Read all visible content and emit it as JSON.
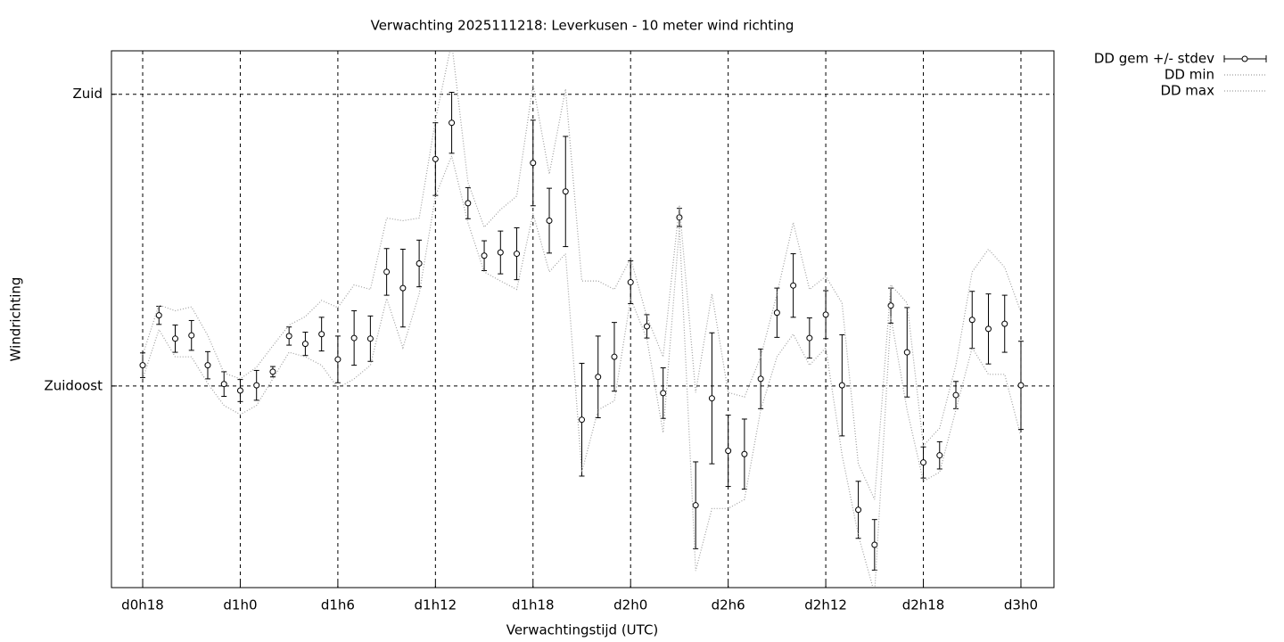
{
  "chart_data": {
    "type": "errorbar",
    "title": "Verwachting 2025111218: Leverkusen - 10 meter wind richting",
    "xlabel": "Verwachtingstijd (UTC)",
    "ylabel": "Windrichting",
    "x": [
      18,
      19,
      20,
      21,
      22,
      23,
      24,
      25,
      26,
      27,
      28,
      29,
      30,
      31,
      32,
      33,
      34,
      35,
      36,
      37,
      38,
      39,
      40,
      41,
      42,
      43,
      44,
      45,
      46,
      47,
      48,
      49,
      50,
      51,
      52,
      53,
      54,
      55,
      56,
      57,
      58,
      59,
      60,
      61,
      62,
      63,
      64,
      65,
      66,
      67,
      68,
      69,
      70,
      71,
      72
    ],
    "xlim": [
      16.08,
      74.03
    ],
    "xticks": [
      {
        "value": 18,
        "label": "d0h18"
      },
      {
        "value": 24,
        "label": "d1h0"
      },
      {
        "value": 30,
        "label": "d1h6"
      },
      {
        "value": 36,
        "label": "d1h12"
      },
      {
        "value": 42,
        "label": "d1h18"
      },
      {
        "value": 48,
        "label": "d2h0"
      },
      {
        "value": 54,
        "label": "d2h6"
      },
      {
        "value": 60,
        "label": "d2h12"
      },
      {
        "value": 66,
        "label": "d2h18"
      },
      {
        "value": 72,
        "label": "d3h0"
      }
    ],
    "ylim": [
      103.9,
      186.7
    ],
    "yticks": [
      {
        "value": 135,
        "label": "Zuidoost"
      },
      {
        "value": 180,
        "label": "Zuid"
      }
    ],
    "grid": true,
    "legend": "outside-top-right",
    "series": [
      {
        "name": "DD gem +/- stdev",
        "color": "#000000",
        "style": "errorbar",
        "values": [
          138.2,
          145.9,
          142.3,
          142.8,
          138.2,
          135.3,
          134.3,
          135.1,
          137.2,
          142.7,
          141.5,
          143.0,
          139.1,
          142.4,
          142.3,
          152.6,
          150.1,
          153.9,
          170.0,
          175.6,
          163.2,
          155.1,
          155.6,
          155.4,
          169.4,
          160.5,
          165.0,
          129.8,
          136.4,
          139.5,
          151.0,
          144.2,
          133.9,
          161.0,
          116.6,
          133.1,
          125.0,
          124.5,
          136.1,
          146.3,
          150.5,
          142.4,
          146.0,
          135.1,
          115.9,
          110.5,
          147.4,
          140.2,
          123.2,
          124.3,
          133.6,
          145.2,
          143.8,
          144.6,
          135.1
        ],
        "errors": [
          1.9,
          1.4,
          2.1,
          2.3,
          2.1,
          1.9,
          1.7,
          2.3,
          0.8,
          1.4,
          1.8,
          2.6,
          3.6,
          4.2,
          3.5,
          3.6,
          6.0,
          3.6,
          5.6,
          4.7,
          2.4,
          2.3,
          3.3,
          4.0,
          6.6,
          5.0,
          8.5,
          8.7,
          6.3,
          5.3,
          3.3,
          1.8,
          3.9,
          1.4,
          6.7,
          10.1,
          5.5,
          5.4,
          4.6,
          3.8,
          4.9,
          3.1,
          3.7,
          7.8,
          4.4,
          3.9,
          2.7,
          6.9,
          2.4,
          2.1,
          2.1,
          4.4,
          5.4,
          4.4,
          6.8
        ]
      },
      {
        "name": "DD min",
        "color": "#a0a0a0",
        "style": "dotted",
        "values": [
          136.1,
          143.7,
          139.5,
          139.5,
          135.4,
          132.0,
          130.6,
          132.0,
          136.1,
          140.2,
          139.5,
          138.2,
          134.7,
          136.1,
          138.2,
          148.5,
          140.9,
          149.2,
          164.3,
          170.5,
          160.2,
          152.6,
          151.2,
          149.9,
          161.6,
          152.6,
          155.4,
          121.7,
          131.3,
          132.7,
          148.5,
          142.3,
          127.8,
          159.5,
          106.5,
          116.1,
          116.1,
          117.5,
          131.3,
          139.5,
          143.0,
          138.2,
          140.9,
          124.4,
          112.0,
          103.0,
          145.7,
          131.3,
          120.3,
          121.7,
          131.3,
          140.9,
          136.8,
          136.8,
          127.2
        ]
      },
      {
        "name": "DD max",
        "color": "#a0a0a0",
        "style": "dotted",
        "values": [
          139.8,
          147.5,
          146.6,
          147.2,
          142.8,
          137.0,
          136.1,
          137.9,
          141.2,
          144.4,
          145.7,
          148.2,
          147.1,
          150.6,
          149.9,
          160.9,
          160.5,
          160.9,
          176.0,
          188.0,
          166.4,
          159.5,
          162.2,
          164.3,
          181.5,
          167.7,
          180.8,
          151.2,
          151.2,
          149.9,
          154.7,
          145.7,
          139.5,
          162.9,
          134.0,
          149.2,
          134.0,
          133.3,
          139.5,
          149.2,
          160.2,
          149.9,
          151.9,
          147.8,
          123.0,
          117.5,
          150.6,
          147.8,
          125.8,
          128.5,
          138.2,
          152.6,
          156.1,
          153.3,
          146.4
        ]
      }
    ]
  }
}
